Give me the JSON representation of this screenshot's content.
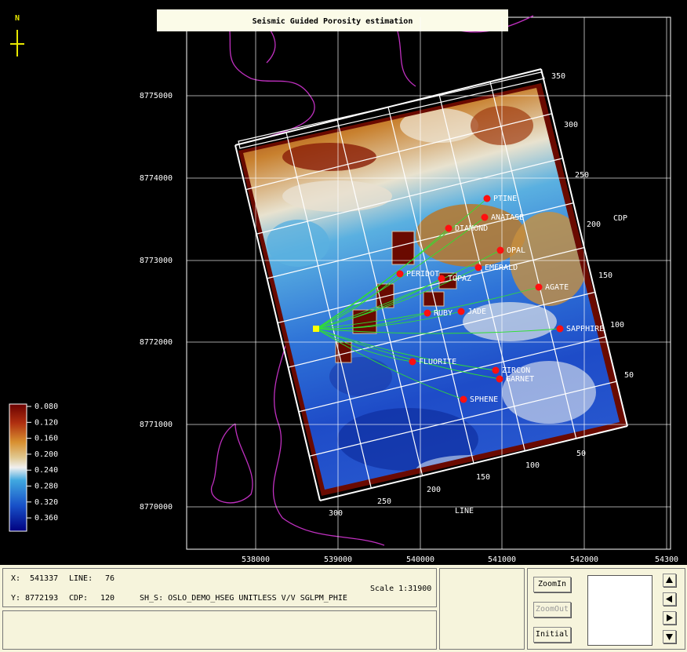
{
  "title": "Seismic Guided Porosity estimation",
  "north": "N",
  "map": {
    "x_ticks": [
      "538000",
      "539000",
      "540000",
      "541000",
      "542000",
      "54300"
    ],
    "y_ticks": [
      "8775000",
      "8774000",
      "8773000",
      "8772000",
      "8771000",
      "8770000"
    ],
    "colorbar": [
      "0.080",
      "0.120",
      "0.160",
      "0.200",
      "0.240",
      "0.280",
      "0.320",
      "0.360"
    ],
    "cdp_label": "CDP",
    "cdp_ticks": [
      "350",
      "300",
      "250",
      "200",
      "150",
      "100",
      "50"
    ],
    "line_label": "LINE",
    "line_ticks": [
      "300",
      "250",
      "200",
      "150",
      "100",
      "50"
    ],
    "wells": [
      "PTINE",
      "ANATASE",
      "DIAMOND",
      "OPAL",
      "EMERALD",
      "PERIDOT",
      "TOPAZ",
      "AGATE",
      "RUBY",
      "JADE",
      "SAPPHIRE",
      "FLUORITE",
      "ZIRCON",
      "GARNET",
      "SPHENE"
    ]
  },
  "status": {
    "x_label": "X:",
    "x_value": "541337",
    "line_label": "LINE:",
    "line_value": "76",
    "y_label": "Y:",
    "y_value": "8772193",
    "cdp_label": "CDP:",
    "cdp_value": "120",
    "source": "SH_S: OSLO_DEMO_HSEG UNITLESS V/V SGLPM_PHIE",
    "scale": "Scale 1:31900"
  },
  "buttons": [
    "ZoomIn",
    "ZoomOut",
    "Initial"
  ]
}
